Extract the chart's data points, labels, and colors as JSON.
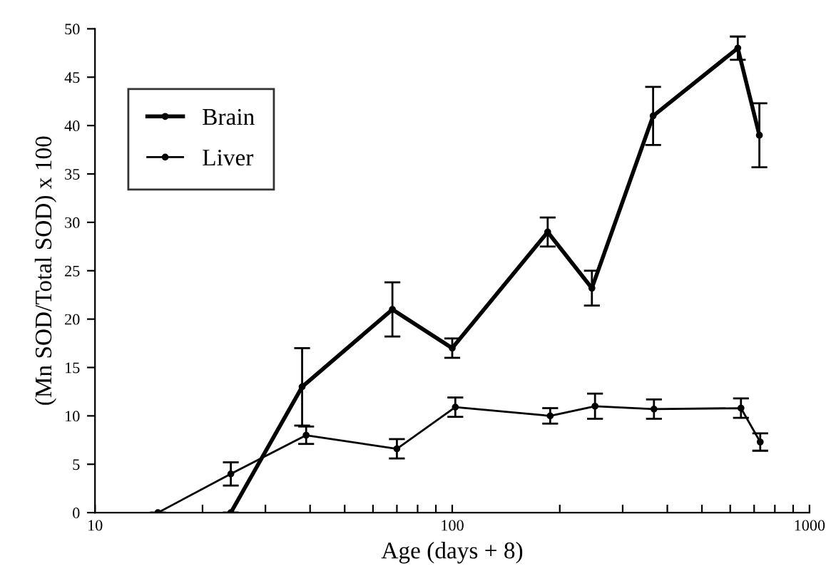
{
  "chart_data": {
    "type": "line",
    "xlabel": "Age (days + 8)",
    "ylabel": "(Mn SOD/Total SOD) x 100",
    "log": "x",
    "xlim": [
      10,
      1000
    ],
    "ylim": [
      0,
      50
    ],
    "xticks": [
      10,
      {
        "value": 20,
        "label": null
      },
      {
        "value": 30,
        "label": null
      },
      {
        "value": 40,
        "label": null
      },
      {
        "value": 50,
        "label": null
      },
      {
        "value": 60,
        "label": null
      },
      {
        "value": 70,
        "label": null
      },
      {
        "value": 80,
        "label": null
      },
      {
        "value": 90,
        "label": null
      },
      100,
      {
        "value": 200,
        "label": null
      },
      {
        "value": 300,
        "label": null
      },
      {
        "value": 400,
        "label": null
      },
      {
        "value": 500,
        "label": null
      },
      {
        "value": 600,
        "label": null
      },
      {
        "value": 700,
        "label": null
      },
      {
        "value": 800,
        "label": null
      },
      {
        "value": 900,
        "label": null
      },
      1000
    ],
    "yticks": [
      0,
      5,
      10,
      15,
      20,
      25,
      30,
      35,
      40,
      45,
      50
    ],
    "grid": false,
    "legend": "top left",
    "marker": "circle",
    "line_style": "solid",
    "series": [
      {
        "name": "Brain",
        "color": "#000000",
        "x": [
          24,
          38,
          68,
          100,
          185,
          246,
          365,
          630,
          724
        ],
        "values": [
          0,
          13,
          21,
          17,
          29,
          23.2,
          41,
          48,
          39
        ],
        "errors": [
          null,
          4,
          2.8,
          1,
          1.5,
          1.8,
          3,
          1.2,
          3.3
        ]
      },
      {
        "name": "Liver",
        "color": "#000000",
        "x": [
          15,
          24,
          39,
          70,
          102,
          188,
          251,
          367,
          643,
          728
        ],
        "values": [
          0,
          4,
          8,
          6.6,
          10.9,
          10,
          11,
          10.7,
          10.8,
          7.3
        ],
        "errors": [
          null,
          1.2,
          0.9,
          1,
          1,
          0.8,
          1.3,
          1,
          1,
          0.9
        ]
      }
    ]
  }
}
